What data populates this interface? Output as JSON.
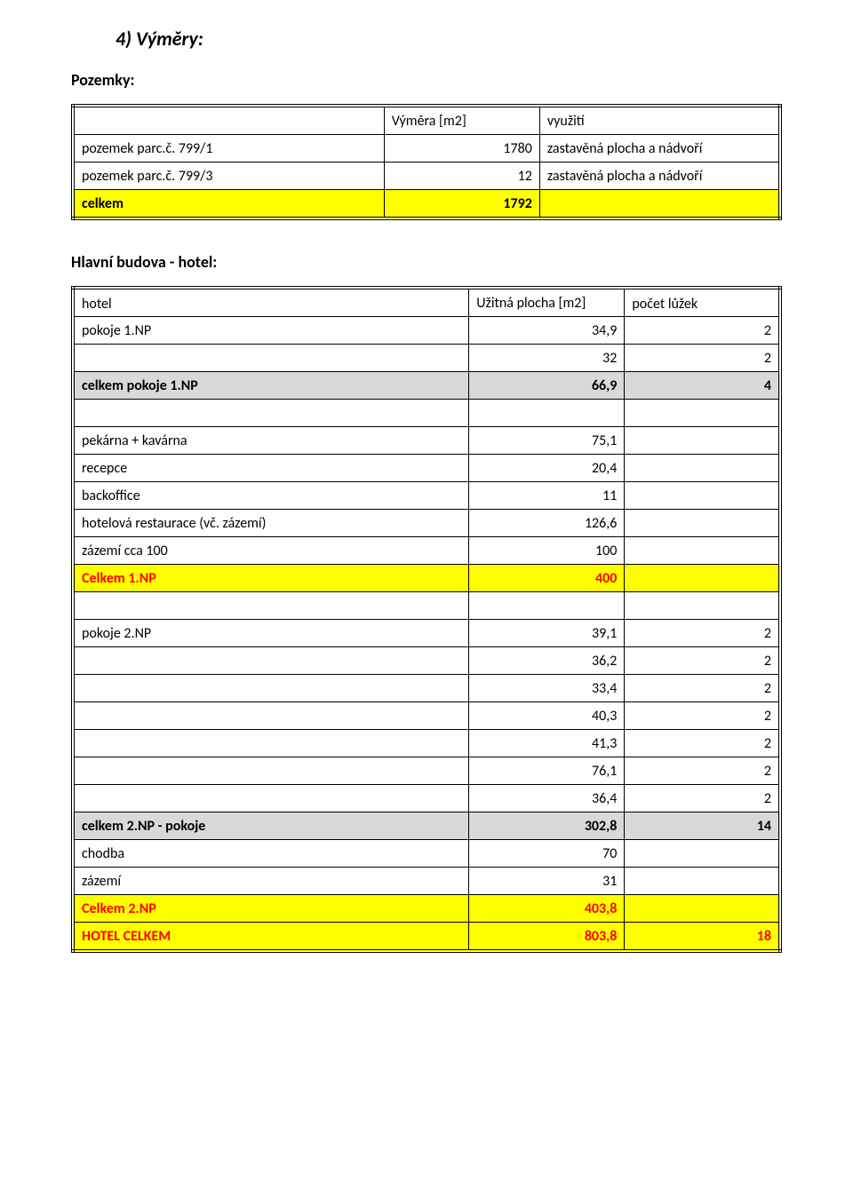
{
  "heading": "4) Výměry:",
  "pozemky": {
    "title": "Pozemky:",
    "header_area": "Výměra [m2]",
    "header_use": "využití",
    "rows": [
      {
        "label": "pozemek parc.č. 799/1",
        "area": "1780",
        "use": "zastavěná plocha a nádvoří"
      },
      {
        "label": "pozemek parc.č. 799/3",
        "area": "12",
        "use": "zastavěná plocha a nádvoří"
      }
    ],
    "total_label": "celkem",
    "total_value": "1792"
  },
  "hlavni": {
    "title": "Hlavní budova - hotel:",
    "header_hotel": "hotel",
    "header_area": "Užitná plocha [m2]",
    "header_beds": "počet lůžek",
    "pokoje1_label": "pokoje 1.NP",
    "pokoje1_rows": [
      {
        "area": "34,9",
        "beds": "2"
      },
      {
        "area": "32",
        "beds": "2"
      }
    ],
    "pokoje1_total_label": "celkem pokoje 1.NP",
    "pokoje1_total_area": "66,9",
    "pokoje1_total_beds": "4",
    "ground_rows": [
      {
        "label": "pekárna + kavárna",
        "area": "75,1"
      },
      {
        "label": "recepce",
        "area": "20,4"
      },
      {
        "label": "backoffice",
        "area": "11"
      },
      {
        "label": "hotelová restaurace (vč. zázemí)",
        "area": "126,6"
      },
      {
        "label": "zázemí cca 100",
        "area": "100"
      }
    ],
    "celkem1_label": "Celkem 1.NP",
    "celkem1_area": "400",
    "pokoje2_label": "pokoje 2.NP",
    "pokoje2_rows": [
      {
        "area": "39,1",
        "beds": "2"
      },
      {
        "area": "36,2",
        "beds": "2"
      },
      {
        "area": "33,4",
        "beds": "2"
      },
      {
        "area": "40,3",
        "beds": "2"
      },
      {
        "area": "41,3",
        "beds": "2"
      },
      {
        "area": "76,1",
        "beds": "2"
      },
      {
        "area": "36,4",
        "beds": "2"
      }
    ],
    "pokoje2_total_label": "celkem 2.NP - pokoje",
    "pokoje2_total_area": "302,8",
    "pokoje2_total_beds": "14",
    "extra_rows": [
      {
        "label": "chodba",
        "area": "70"
      },
      {
        "label": "zázemí",
        "area": "31"
      }
    ],
    "celkem2_label": "Celkem 2.NP",
    "celkem2_area": "403,8",
    "hotel_total_label": "HOTEL CELKEM",
    "hotel_total_area": "803,8",
    "hotel_total_beds": "18"
  },
  "colors": {
    "highlight": "#ffff00",
    "subtotal": "#d9d9d9",
    "red": "#ff0000",
    "border": "#000000",
    "bg": "#ffffff"
  }
}
